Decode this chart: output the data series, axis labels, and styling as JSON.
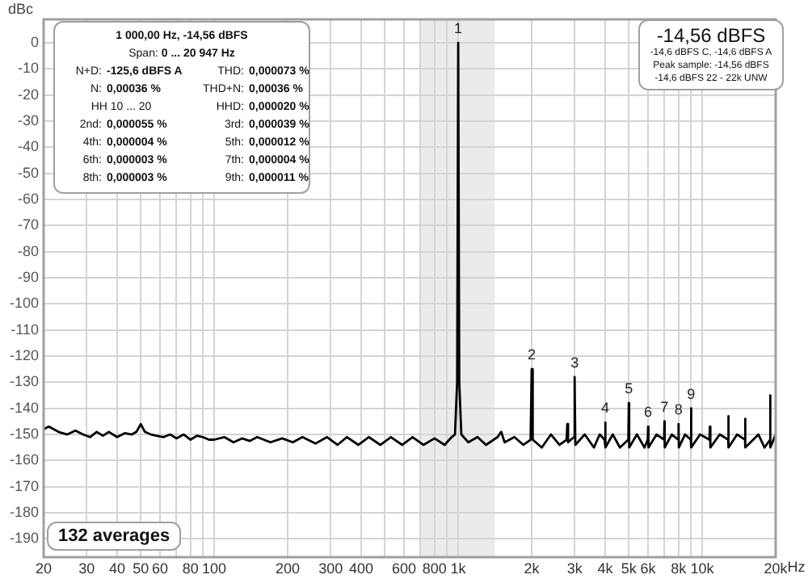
{
  "chart_data": {
    "type": "line",
    "ylabel": "dBc",
    "x": [
      20,
      21,
      23,
      25,
      27,
      29,
      31,
      33,
      35,
      37,
      40,
      43,
      46,
      48,
      50,
      52,
      55,
      58,
      62,
      66,
      70,
      75,
      80,
      85,
      90,
      95,
      100,
      110,
      120,
      130,
      140,
      150,
      170,
      190,
      210,
      230,
      260,
      290,
      320,
      350,
      390,
      430,
      480,
      530,
      590,
      650,
      720,
      800,
      880,
      940,
      970,
      990,
      1000,
      1010,
      1030,
      1100,
      1200,
      1300,
      1450,
      1500,
      1550,
      1700,
      1850,
      1980,
      2000,
      2020,
      2200,
      2400,
      2600,
      2780,
      2800,
      2820,
      2980,
      3000,
      3020,
      3300,
      3600,
      3800,
      3980,
      4000,
      4020,
      4300,
      4600,
      4980,
      5000,
      5020,
      5400,
      5800,
      5980,
      6000,
      6020,
      6500,
      6980,
      7000,
      7020,
      7500,
      7980,
      8000,
      8020,
      8500,
      8980,
      9000,
      9020,
      9800,
      10700,
      10750,
      10800,
      11800,
      12780,
      12800,
      12820,
      13900,
      14980,
      15000,
      15020,
      17000,
      18000,
      18980,
      19000,
      19020,
      20000
    ],
    "series": [
      {
        "color": "#000000",
        "values": [
          -148,
          -147,
          -149,
          -150,
          -148.5,
          -150,
          -151,
          -149,
          -150.5,
          -149,
          -151,
          -149.5,
          -150,
          -149,
          -146,
          -149,
          -150,
          -150.5,
          -151,
          -150,
          -151.5,
          -150,
          -152,
          -150.5,
          -151,
          -152,
          -152,
          -151,
          -153,
          -151.5,
          -152.5,
          -151,
          -153,
          -151.5,
          -153,
          -151,
          -153.5,
          -151,
          -154,
          -151,
          -154,
          -151,
          -154,
          -151,
          -154,
          -151,
          -154,
          -151.5,
          -154,
          -151,
          -150,
          -130,
          0,
          -130,
          -150,
          -153,
          -151,
          -154,
          -151,
          -149,
          -153,
          -151,
          -154,
          -152,
          -125,
          -152,
          -155,
          -150,
          -154,
          -152,
          -146,
          -153,
          -151,
          -128,
          -154,
          -150,
          -155,
          -150,
          -152,
          -145.5,
          -155,
          -150,
          -155,
          -152,
          -138,
          -155,
          -150,
          -155,
          -152,
          -147,
          -155,
          -150,
          -152,
          -145,
          -155,
          -150,
          -152,
          -146,
          -155,
          -150,
          -152,
          -140,
          -155,
          -150,
          -152,
          -147,
          -155,
          -150,
          -152,
          -143,
          -155,
          -150,
          -152,
          -144,
          -155,
          -150,
          -155,
          -152,
          -135,
          -155,
          -150
        ]
      }
    ],
    "log": "x",
    "xlim": [
      20,
      20000
    ],
    "xticks": [
      20,
      30,
      40,
      50,
      60,
      {
        "value": 70,
        "label": null
      },
      80,
      {
        "value": 90,
        "label": null
      },
      100,
      200,
      300,
      400,
      {
        "value": 500,
        "label": null
      },
      600,
      {
        "value": 700,
        "label": null
      },
      800,
      {
        "value": 900,
        "label": null
      },
      {
        "value": 1000,
        "label": "1k"
      },
      {
        "value": 2000,
        "label": "2k"
      },
      {
        "value": 3000,
        "label": "3k"
      },
      {
        "value": 4000,
        "label": "4k"
      },
      {
        "value": 5000,
        "label": "5k"
      },
      {
        "value": 6000,
        "label": "6k"
      },
      {
        "value": 7000,
        "label": null
      },
      {
        "value": 8000,
        "label": "8k"
      },
      {
        "value": 9000,
        "label": null
      },
      {
        "value": 10000,
        "label": "10k"
      },
      {
        "value": 20000,
        "label": "20k"
      }
    ],
    "xlabel": "Hz",
    "ylim": [
      -197,
      9
    ],
    "yticks": [
      0,
      -10,
      -20,
      -30,
      -40,
      -50,
      -60,
      -70,
      -80,
      -90,
      -100,
      -110,
      -120,
      -130,
      -140,
      -150,
      -160,
      -170,
      -180,
      -190
    ],
    "grid": true,
    "legend": false,
    "marker": "none",
    "line_style": "solid",
    "bands": [
      {
        "axis": "x",
        "from": 700,
        "to": 1410,
        "color": "#ebebeb"
      }
    ],
    "annotations": [
      "1 000,00 Hz, -14,56 dBFS",
      "Span: 0 ... 20 947 Hz",
      "N+D: -125,6 dBFS A",
      "THD: 0,000073 %",
      "N: 0,00036 %",
      "THD+N: 0,00036 %",
      "HH 10 ... 20",
      "HHD: 0,000020 %",
      "2nd: 0,000055 %",
      "3rd: 0,000039 %",
      "4th: 0,000004 %",
      "5th: 0,000012 %",
      "6th: 0,000003 %",
      "7th: 0,000004 %",
      "8th: 0,000003 %",
      "9th: 0,000011 %",
      "-14,56 dBFS",
      "-14,6 dBFS C, -14,6 dBFS A",
      "Peak sample: -14,56 dBFS",
      "-14,6 dBFS 22 - 22k UNW",
      "132 averages",
      {
        "text": "1",
        "x": 1000,
        "y": 0
      },
      {
        "text": "2",
        "x": 2000,
        "y": -125
      },
      {
        "text": "3",
        "x": 3000,
        "y": -128
      },
      {
        "text": "4",
        "x": 4000,
        "y": -145.5
      },
      {
        "text": "5",
        "x": 5000,
        "y": -138
      },
      {
        "text": "6",
        "x": 6000,
        "y": -147
      },
      {
        "text": "7",
        "x": 7000,
        "y": -145
      },
      {
        "text": "8",
        "x": 8000,
        "y": -146
      },
      {
        "text": "9",
        "x": 9000,
        "y": -140
      }
    ]
  }
}
